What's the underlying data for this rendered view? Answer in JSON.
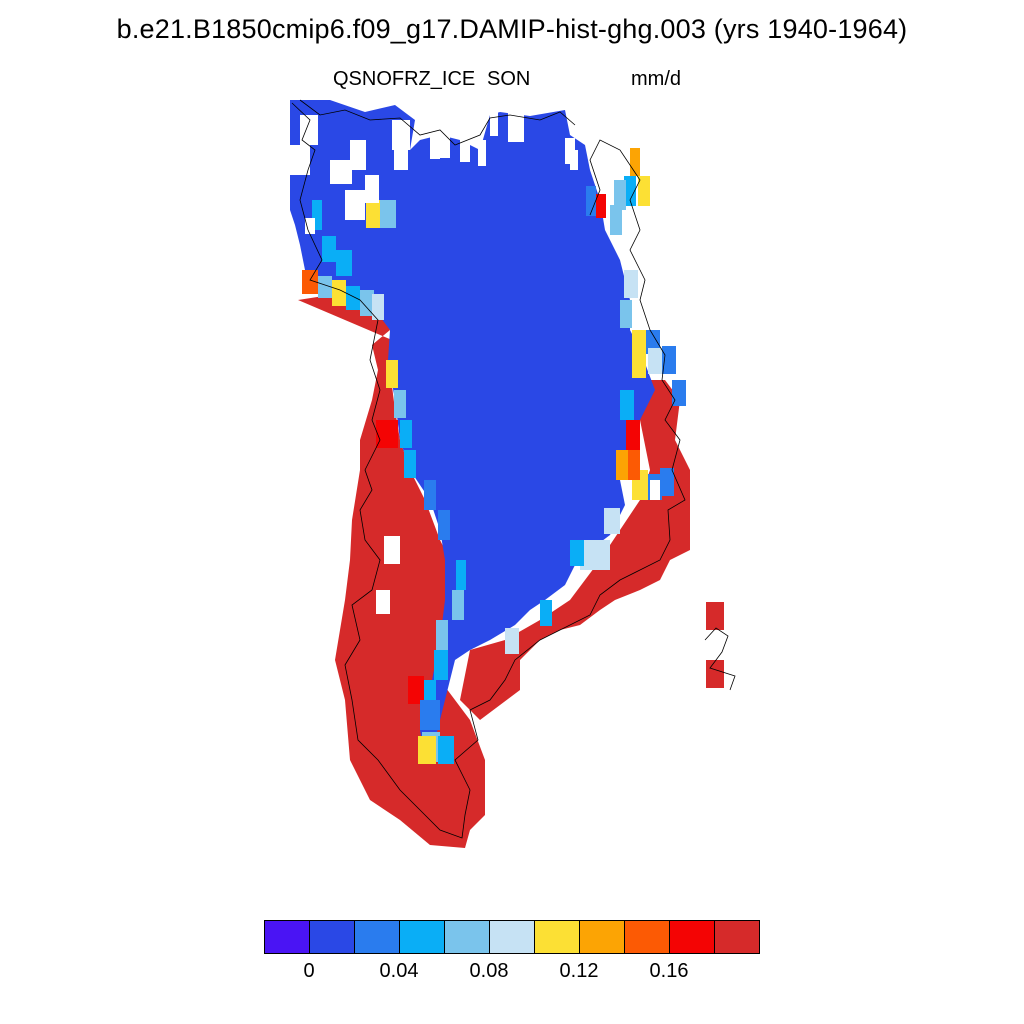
{
  "title": "b.e21.B1850cmip6.f09_g17.DAMIP-hist-ghg.003 (yrs 1940-1964)",
  "variable": "QSNOFRZ_ICE",
  "season": "SON",
  "units": "mm/d",
  "colorbar": {
    "colors": [
      "#4a14f4",
      "#2a48e6",
      "#2a7cee",
      "#0aaef6",
      "#7ac4ec",
      "#c6e2f4",
      "#fce034",
      "#fca404",
      "#fc5a04",
      "#f40404",
      "#d62a2a"
    ],
    "tick_labels": [
      "0",
      "0.04",
      "0.08",
      "0.12",
      "0.16"
    ]
  },
  "map_palette": {
    "ice_interior": "#2a48e6",
    "margin_melt": "#d62a2a",
    "missing": "#ffffff",
    "coastline": "#000000"
  }
}
